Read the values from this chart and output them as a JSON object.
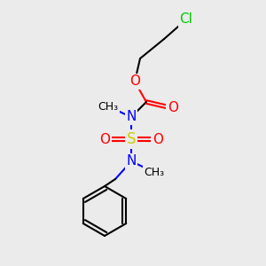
{
  "bg_color": "#ebebeb",
  "title_color": "#000000",
  "atom_colors": {
    "C": "#000000",
    "H": "#000000",
    "N": "#0000ff",
    "O": "#ff0000",
    "S": "#cccc00",
    "Cl": "#00cc00"
  },
  "layout": {
    "xlim": [
      0,
      300
    ],
    "ylim": [
      0,
      300
    ]
  }
}
